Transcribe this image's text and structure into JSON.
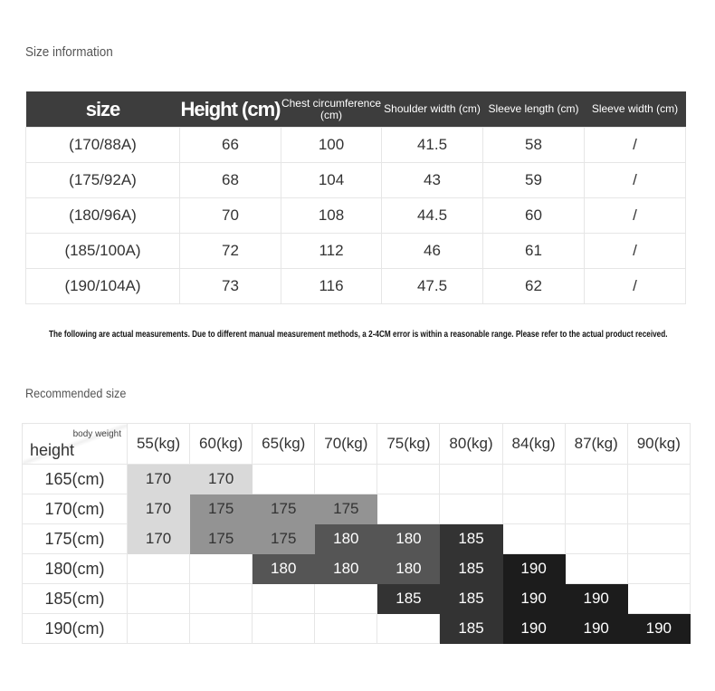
{
  "size_info": {
    "title": "Size information",
    "headers": [
      "size",
      "Height (cm)",
      "Chest circumference (cm)",
      "Shoulder width (cm)",
      "Sleeve length (cm)",
      "Sleeve width (cm)"
    ],
    "rows": [
      [
        "(170/88A)",
        "66",
        "100",
        "41.5",
        "58",
        "/"
      ],
      [
        "(175/92A)",
        "68",
        "104",
        "43",
        "59",
        "/"
      ],
      [
        "(180/96A)",
        "70",
        "108",
        "44.5",
        "60",
        "/"
      ],
      [
        "(185/100A)",
        "72",
        "112",
        "46",
        "61",
        "/"
      ],
      [
        "(190/104A)",
        "73",
        "116",
        "47.5",
        "62",
        "/"
      ]
    ]
  },
  "note": "The following are actual measurements. Due to different manual measurement methods, a 2-4CM error is within a reasonable range. Please refer to the actual product received.",
  "recommended": {
    "title": "Recommended size",
    "corner_top": "body weight",
    "corner_bottom": "height",
    "weights": [
      "55(kg)",
      "60(kg)",
      "65(kg)",
      "70(kg)",
      "75(kg)",
      "80(kg)",
      "84(kg)",
      "87(kg)",
      "90(kg)"
    ],
    "rows": [
      {
        "height": "165(cm)",
        "cells": [
          "170",
          "170",
          "",
          "",
          "",
          "",
          "",
          "",
          ""
        ]
      },
      {
        "height": "170(cm)",
        "cells": [
          "170",
          "175",
          "175",
          "175",
          "",
          "",
          "",
          "",
          ""
        ]
      },
      {
        "height": "175(cm)",
        "cells": [
          "170",
          "175",
          "175",
          "180",
          "180",
          "185",
          "",
          "",
          ""
        ]
      },
      {
        "height": "180(cm)",
        "cells": [
          "",
          "",
          "180",
          "180",
          "180",
          "185",
          "190",
          "",
          ""
        ]
      },
      {
        "height": "185(cm)",
        "cells": [
          "",
          "",
          "",
          "",
          "185",
          "185",
          "190",
          "190",
          ""
        ]
      },
      {
        "height": "190(cm)",
        "cells": [
          "",
          "",
          "",
          "",
          "",
          "185",
          "190",
          "190",
          "190"
        ]
      }
    ],
    "size_colors": {
      "170": "#d9d9d9",
      "175": "#939393",
      "180": "#555555",
      "185": "#333333",
      "190": "#1c1c1c"
    }
  }
}
